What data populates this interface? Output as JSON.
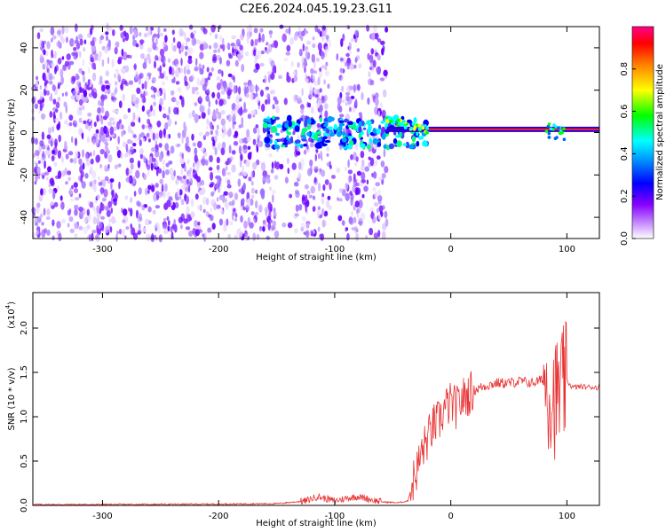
{
  "figure_title": "C2E6.2024.045.19.23.G11",
  "chart_data": [
    {
      "type": "heatmap",
      "xlabel": "Height of straight line (km)",
      "ylabel": "Frequency (Hz)",
      "xlim": [
        -360,
        128
      ],
      "ylim": [
        -50,
        50
      ],
      "x_ticks": [
        "-300",
        "-200",
        "-100",
        "0",
        "100"
      ],
      "y_ticks": [
        "40",
        "20",
        "0",
        "-20",
        "-40"
      ],
      "colorbar": {
        "label": "Normalized spectral amplitude",
        "range": [
          0,
          1
        ],
        "ticks": [
          "0.0",
          "0.2",
          "0.4",
          "0.6",
          "0.8"
        ],
        "colors": [
          "#ffffff",
          "#8800ff",
          "#0000ff",
          "#00ffff",
          "#00ff00",
          "#ffff00",
          "#ff8800",
          "#ff0000",
          "#ff0088"
        ]
      },
      "description_regions": {
        "noise_region_x": [
          -360,
          -55
        ],
        "transition_x": [
          -55,
          -20
        ],
        "carrier_line_x": [
          -20,
          128
        ],
        "carrier_freq": 1.5
      }
    },
    {
      "type": "line",
      "xlabel": "Height of straight line (km)",
      "ylabel": "SNR (10 * v/v)",
      "y_exponent_label": "(x10",
      "y_exponent_sup": "4",
      "y_exponent_close": ")",
      "xlim": [
        -360,
        128
      ],
      "ylim": [
        0,
        2.4
      ],
      "x_ticks": [
        "-300",
        "-200",
        "-100",
        "0",
        "100"
      ],
      "y_ticks": [
        "0.0",
        "0.5",
        "1.0",
        "1.5",
        "2.0"
      ],
      "series": [
        {
          "color": "#e83030",
          "x": [
            -360,
            -300,
            -200,
            -150,
            -125,
            -115,
            -100,
            -90,
            -80,
            -60,
            -45,
            -37,
            -32,
            -28,
            -25,
            -20,
            -15,
            -10,
            -5,
            0,
            5,
            10,
            20,
            30,
            40,
            50,
            60,
            70,
            80,
            85,
            90,
            95,
            100,
            105,
            110,
            128
          ],
          "y": [
            0.01,
            0.01,
            0.015,
            0.02,
            0.05,
            0.1,
            0.05,
            0.08,
            0.1,
            0.04,
            0.03,
            0.05,
            0.3,
            0.45,
            0.6,
            0.75,
            0.9,
            0.95,
            1.1,
            1.15,
            1.1,
            1.2,
            1.3,
            1.35,
            1.38,
            1.38,
            1.4,
            1.38,
            1.42,
            1.3,
            1.2,
            1.3,
            1.4,
            1.33,
            1.34,
            1.33
          ]
        }
      ]
    }
  ]
}
